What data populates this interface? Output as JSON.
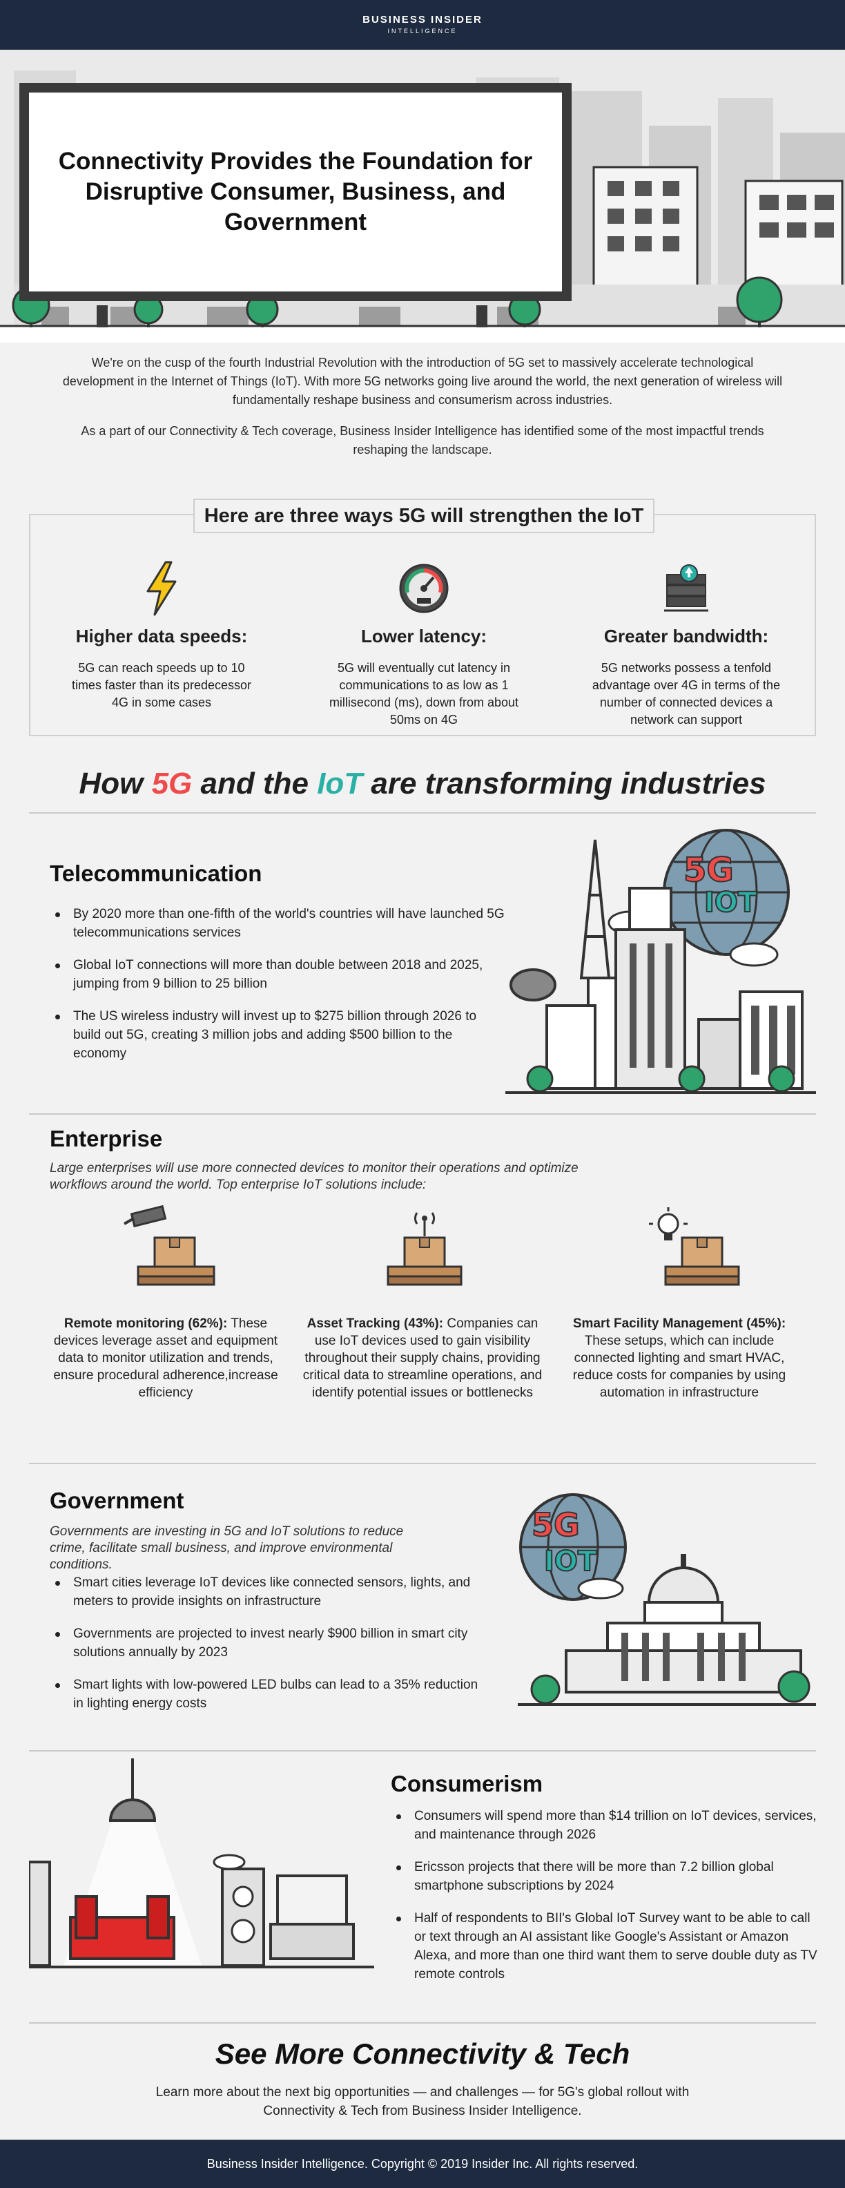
{
  "header": {
    "brand": "BUSINESS INSIDER",
    "brand_sub": "INTELLIGENCE"
  },
  "hero": {
    "title": "Connectivity Provides the Foundation for Disruptive Consumer, Business, and Government"
  },
  "intro": {
    "p1": "We're on the cusp of the fourth Industrial Revolution with the introduction of 5G set to massively accelerate technological development in the Internet of Things (IoT). With more 5G networks going live around the world, the next generation of wireless will fundamentally reshape business and consumerism across industries.",
    "p2": "As a part of our Connectivity & Tech coverage, Business Insider Intelligence has identified some of the most impactful trends reshaping the landscape."
  },
  "three_ways": {
    "title": "Here are three ways 5G will strengthen the IoT",
    "items": [
      {
        "icon": "lightning-icon",
        "title": "Higher data speeds:",
        "text": "5G can reach speeds up to 10 times faster than its predecessor 4G in some cases"
      },
      {
        "icon": "speedometer-icon",
        "title": "Lower latency:",
        "text": "5G will eventually cut latency in communications to as low as 1 millisecond (ms), down from about 50ms on 4G"
      },
      {
        "icon": "server-upload-icon",
        "title": "Greater bandwidth:",
        "text": "5G networks possess a tenfold advantage over 4G in terms of the number of connected devices a network can support"
      }
    ]
  },
  "how": {
    "part1": "How ",
    "fiveg": "5G",
    "part2": " and the ",
    "iot": "IoT",
    "part3": " are transforming industries"
  },
  "badge": {
    "fiveg": "5G",
    "iot": "IOT"
  },
  "telecom": {
    "title": "Telecommunication",
    "bullets": [
      "By 2020 more than one-fifth of the world's countries will have launched 5G telecommunications services",
      "Global IoT connections will more than double between 2018 and 2025, jumping from 9 billion to 25 billion",
      "The US wireless industry will invest up to $275 billion through 2026 to build out 5G, creating 3 million jobs and adding $500 billion to the economy"
    ]
  },
  "enterprise": {
    "title": "Enterprise",
    "intro": "Large enterprises will use more connected devices to monitor their operations and optimize workflows around the world. Top enterprise IoT solutions include:",
    "items": [
      {
        "icon": "security-camera-icon",
        "title": "Remote monitoring (62%):",
        "text": " These devices leverage asset and equipment data to monitor utilization and trends, ensure procedural adherence,increase efficiency"
      },
      {
        "icon": "wireless-tracker-icon",
        "title": "Asset Tracking (43%):",
        "text": " Companies can use IoT devices used to gain visibility throughout their supply chains, providing critical data to streamline operations, and identify potential issues or bottlenecks"
      },
      {
        "icon": "light-bulb-icon",
        "title": "Smart Facility Management (45%):",
        "text": " These setups, which can include connected lighting and smart HVAC, reduce costs for companies by using automation in infrastructure"
      }
    ]
  },
  "government": {
    "title": "Government",
    "intro": "Governments are investing in 5G and IoT solutions to reduce crime, facilitate small business, and improve environmental conditions.",
    "bullets": [
      "Smart cities leverage IoT devices like connected sensors, lights, and meters to provide insights on infrastructure",
      "Governments are projected to invest nearly $900 billion in smart city solutions annually by 2023",
      "Smart lights with low-powered LED bulbs can lead to a 35% reduction in lighting energy costs"
    ]
  },
  "consumerism": {
    "title": "Consumerism",
    "bullets": [
      "Consumers will spend more than $14 trillion on IoT devices, services, and maintenance through 2026",
      "Ericsson projects that there will be more than 7.2 billion global smartphone subscriptions by 2024",
      "Half of respondents to BII's Global IoT Survey want to be able to call or text through an AI assistant like Google's Assistant or Amazon Alexa, and more than one third want them to serve double duty as TV remote controls"
    ]
  },
  "closing": {
    "title": "See More Connectivity & Tech",
    "text": "Learn more about the next big opportunities — and challenges — for 5G's global rollout with Connectivity & Tech from Business Insider Intelligence."
  },
  "footer": {
    "text": "Business Insider Intelligence. Copyright © 2019 Insider Inc. All rights reserved."
  },
  "colors": {
    "navy": "#1d2a3f",
    "red": "#ee4b4b",
    "teal": "#2bb0a6",
    "green": "#2fa36b"
  }
}
